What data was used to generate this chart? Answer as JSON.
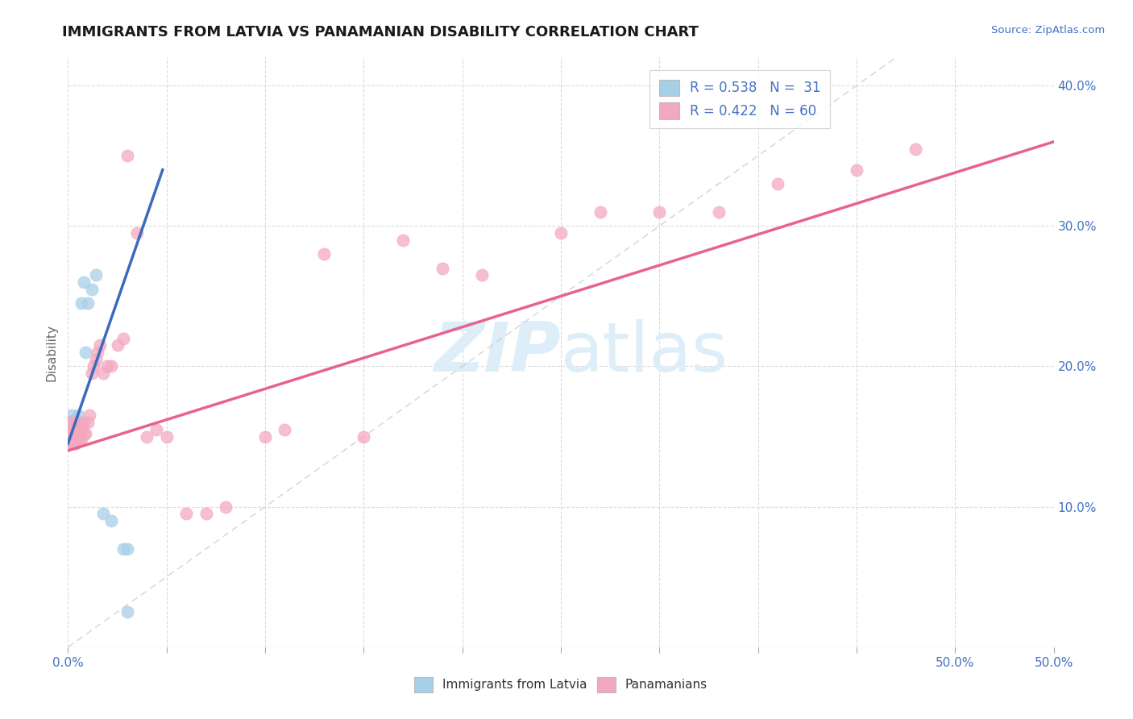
{
  "title": "IMMIGRANTS FROM LATVIA VS PANAMANIAN DISABILITY CORRELATION CHART",
  "source_text": "Source: ZipAtlas.com",
  "ylabel": "Disability",
  "xlim": [
    0.0,
    0.5
  ],
  "ylim": [
    0.0,
    0.42
  ],
  "xticks_minor": [
    0.0,
    0.05,
    0.1,
    0.15,
    0.2,
    0.25,
    0.3,
    0.35,
    0.4,
    0.45,
    0.5
  ],
  "xtick_labels_shown": {
    "0.0": "0.0%",
    "0.5": "50.0%"
  },
  "yticks": [
    0.0,
    0.1,
    0.2,
    0.3,
    0.4
  ],
  "yticklabels_right": [
    "",
    "10.0%",
    "20.0%",
    "30.0%",
    "40.0%"
  ],
  "legend_r1": "R = 0.538",
  "legend_n1": "N =  31",
  "legend_r2": "R = 0.422",
  "legend_n2": "N = 60",
  "blue_color": "#a8cfe8",
  "pink_color": "#f4a8bf",
  "blue_line_color": "#3a6bbf",
  "pink_line_color": "#e8638a",
  "watermark_color": "#ddeef8",
  "blue_scatter_x": [
    0.001,
    0.001,
    0.001,
    0.002,
    0.002,
    0.002,
    0.002,
    0.002,
    0.003,
    0.003,
    0.003,
    0.003,
    0.004,
    0.004,
    0.004,
    0.005,
    0.005,
    0.005,
    0.006,
    0.006,
    0.007,
    0.008,
    0.009,
    0.01,
    0.012,
    0.014,
    0.018,
    0.022,
    0.028,
    0.03,
    0.03
  ],
  "blue_scatter_y": [
    0.15,
    0.155,
    0.16,
    0.145,
    0.15,
    0.155,
    0.16,
    0.165,
    0.148,
    0.152,
    0.158,
    0.162,
    0.148,
    0.155,
    0.162,
    0.15,
    0.158,
    0.165,
    0.152,
    0.16,
    0.245,
    0.26,
    0.21,
    0.245,
    0.255,
    0.265,
    0.095,
    0.09,
    0.07,
    0.07,
    0.025
  ],
  "pink_scatter_x": [
    0.001,
    0.001,
    0.001,
    0.001,
    0.002,
    0.002,
    0.002,
    0.002,
    0.003,
    0.003,
    0.003,
    0.003,
    0.004,
    0.004,
    0.004,
    0.004,
    0.005,
    0.005,
    0.005,
    0.006,
    0.006,
    0.007,
    0.007,
    0.008,
    0.008,
    0.009,
    0.01,
    0.011,
    0.012,
    0.013,
    0.014,
    0.015,
    0.016,
    0.018,
    0.02,
    0.022,
    0.025,
    0.028,
    0.03,
    0.035,
    0.04,
    0.045,
    0.05,
    0.06,
    0.07,
    0.08,
    0.1,
    0.11,
    0.13,
    0.15,
    0.17,
    0.19,
    0.21,
    0.25,
    0.27,
    0.3,
    0.33,
    0.36,
    0.4,
    0.43
  ],
  "pink_scatter_y": [
    0.145,
    0.15,
    0.155,
    0.16,
    0.145,
    0.15,
    0.155,
    0.16,
    0.145,
    0.148,
    0.152,
    0.158,
    0.145,
    0.148,
    0.152,
    0.16,
    0.148,
    0.152,
    0.158,
    0.148,
    0.155,
    0.148,
    0.158,
    0.152,
    0.16,
    0.152,
    0.16,
    0.165,
    0.195,
    0.2,
    0.205,
    0.21,
    0.215,
    0.195,
    0.2,
    0.2,
    0.215,
    0.22,
    0.35,
    0.295,
    0.15,
    0.155,
    0.15,
    0.095,
    0.095,
    0.1,
    0.15,
    0.155,
    0.28,
    0.15,
    0.29,
    0.27,
    0.265,
    0.295,
    0.31,
    0.31,
    0.31,
    0.33,
    0.34,
    0.355
  ],
  "blue_line_x0": 0.0,
  "blue_line_x1": 0.048,
  "blue_line_y0": 0.145,
  "blue_line_y1": 0.34,
  "pink_line_x0": 0.0,
  "pink_line_x1": 0.5,
  "pink_line_y0": 0.14,
  "pink_line_y1": 0.36
}
